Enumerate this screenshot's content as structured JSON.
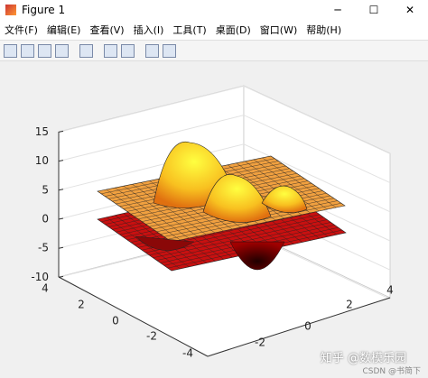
{
  "window": {
    "title": "Figure 1"
  },
  "menu": [
    "文件(F)",
    "编辑(E)",
    "查看(V)",
    "插入(I)",
    "工具(T)",
    "桌面(D)",
    "窗口(W)",
    "帮助(H)"
  ],
  "axes": {
    "zticks": [
      15,
      10,
      5,
      0,
      -5,
      -10
    ],
    "xticks": [
      4,
      2,
      0,
      -2,
      -4
    ],
    "yticks": [
      -2,
      0,
      2,
      4
    ]
  },
  "watermark": [
    "知乎 @数模乐园",
    "CSDN @书简下"
  ]
}
